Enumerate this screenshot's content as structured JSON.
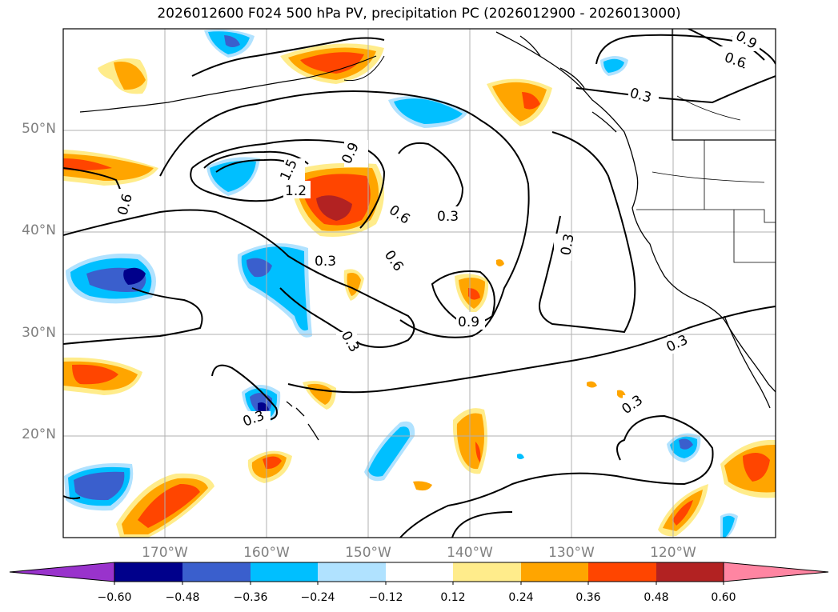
{
  "title": "2026012600 F024 500 hPa PV, precipitation PC (2026012900 - 2026013000)",
  "lat_labels": [
    "50°N",
    "40°N",
    "30°N",
    "20°N"
  ],
  "lon_labels": [
    "170°W",
    "160°W",
    "150°W",
    "140°W",
    "130°W",
    "120°W"
  ],
  "contour_labels": [
    "0.3",
    "0.6",
    "0.9",
    "1.2",
    "1.5"
  ],
  "colorbar": {
    "ticks": [
      "−0.60",
      "−0.48",
      "−0.36",
      "−0.24",
      "−0.12",
      "0.12",
      "0.24",
      "0.36",
      "0.48",
      "0.60"
    ],
    "colors": [
      "#9933cc",
      "#00008b",
      "#3a5fcd",
      "#00bfff",
      "#b0e2ff",
      "#ffffff",
      "#ffec8b",
      "#ffa500",
      "#ff4500",
      "#b22222",
      "#ff85a2"
    ]
  },
  "colors": {
    "grid": "#b0b0b0",
    "axis_text": "#808080",
    "contour": "#000000",
    "coast": "#000000"
  }
}
